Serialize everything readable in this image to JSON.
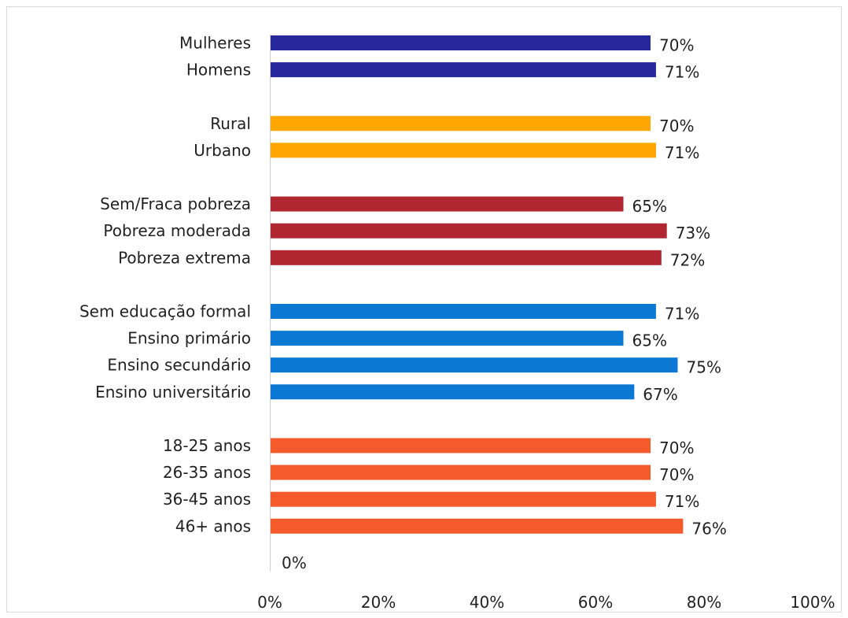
{
  "chart_data": {
    "type": "bar",
    "orientation": "horizontal",
    "title": "",
    "xlabel": "",
    "ylabel": "",
    "xlim": [
      0,
      100
    ],
    "x_ticks": [
      "0%",
      "20%",
      "40%",
      "60%",
      "80%",
      "100%"
    ],
    "grid": false,
    "legend": "none",
    "groups": [
      {
        "color": "#27289b",
        "items": [
          {
            "label": "Mulheres",
            "value": 70,
            "value_label": "70%"
          },
          {
            "label": "Homens",
            "value": 71,
            "value_label": "71%"
          }
        ]
      },
      {
        "color": "#ffa602",
        "items": [
          {
            "label": "Rural",
            "value": 70,
            "value_label": "70%"
          },
          {
            "label": "Urbano",
            "value": 71,
            "value_label": "71%"
          }
        ]
      },
      {
        "color": "#b02731",
        "items": [
          {
            "label": "Sem/Fraca pobreza",
            "value": 65,
            "value_label": "65%"
          },
          {
            "label": "Pobreza moderada",
            "value": 73,
            "value_label": "73%"
          },
          {
            "label": "Pobreza extrema",
            "value": 72,
            "value_label": "72%"
          }
        ]
      },
      {
        "color": "#0b78d4",
        "items": [
          {
            "label": "Sem educação formal",
            "value": 71,
            "value_label": "71%"
          },
          {
            "label": "Ensino primário",
            "value": 65,
            "value_label": "65%"
          },
          {
            "label": "Ensino secundário",
            "value": 75,
            "value_label": "75%"
          },
          {
            "label": "Ensino universitário",
            "value": 67,
            "value_label": "67%"
          }
        ]
      },
      {
        "color": "#f45a2c",
        "items": [
          {
            "label": "18-25 anos",
            "value": 70,
            "value_label": "70%"
          },
          {
            "label": "26-35 anos",
            "value": 70,
            "value_label": "70%"
          },
          {
            "label": "36-45 anos",
            "value": 71,
            "value_label": "71%"
          },
          {
            "label": "46+ anos",
            "value": 76,
            "value_label": "76%"
          }
        ]
      }
    ],
    "extra_label": "0%"
  }
}
